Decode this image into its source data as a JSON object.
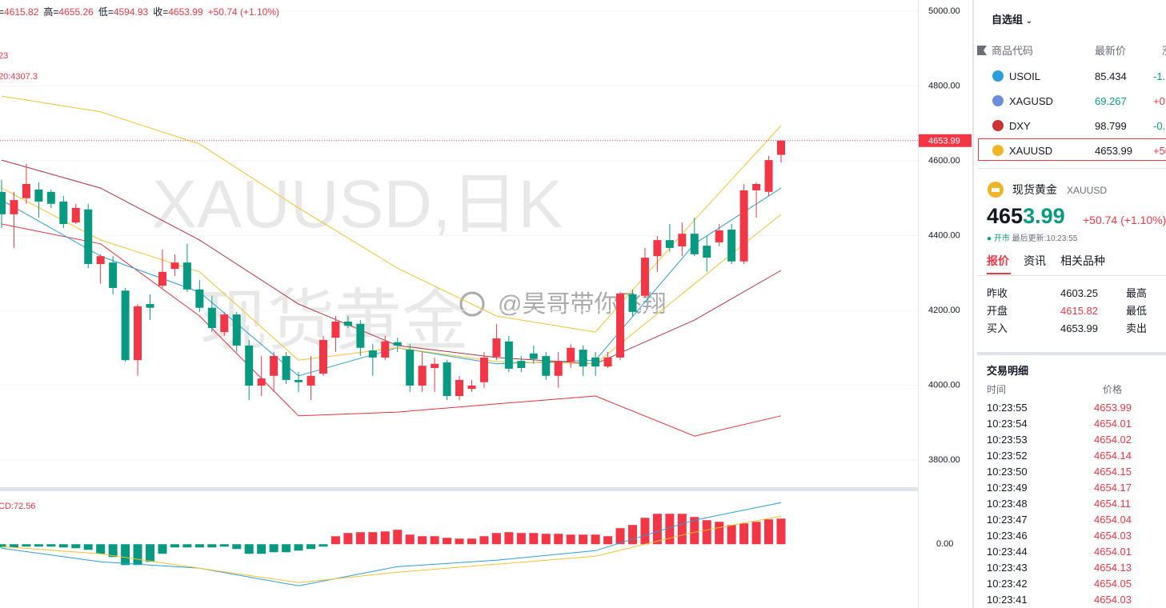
{
  "chart_data": {
    "type": "candlestick",
    "header": [
      {
        "label": "=",
        "value": "4615.82"
      },
      {
        "label": "高=",
        "value": "4655.26"
      },
      {
        "label": "低=",
        "value": "4594.93"
      },
      {
        "label": "收=",
        "value": "4653.99"
      }
    ],
    "header_change": "+50.74 (+1.10%)",
    "legend_lines": [
      "23",
      "20:4307.3"
    ],
    "watermark": "XAUUSD,日K",
    "watermark2": "现货黄金",
    "ylim": [
      3770,
      5030
    ],
    "yticks": [
      {
        "value": 5000,
        "label": "5000.00"
      },
      {
        "value": 4800,
        "label": "4800.00"
      },
      {
        "value": 4600,
        "label": "4600.00"
      },
      {
        "value": 4400,
        "label": "4400.00"
      },
      {
        "value": 4200,
        "label": "4200.00"
      },
      {
        "value": 4000,
        "label": "4000.00"
      },
      {
        "value": 3800,
        "label": "3800.00"
      }
    ],
    "grid": true,
    "last_price": {
      "value": 4653.99,
      "label": "4653.99"
    },
    "up_color": "#f23645",
    "down_color": "#089981",
    "candles": {
      "open": [
        4517,
        4457,
        4500,
        4523,
        4517,
        4491,
        4435,
        4470,
        4324,
        4328,
        4253,
        4067,
        4217,
        4266,
        4311,
        4328,
        4256,
        4207,
        4142,
        4189,
        4106,
        3999,
        4025,
        4078,
        4014,
        3999,
        4031,
        4127,
        4170,
        4164,
        4093,
        4074,
        4115,
        4095,
        3999,
        4046,
        4061,
        3971,
        3990,
        4008,
        4076,
        4117,
        4065,
        4085,
        4078,
        4025,
        4063,
        4095,
        4074,
        4050,
        4074,
        4243,
        4239,
        4345,
        4388,
        4371,
        4405,
        4373,
        4382,
        4416,
        4331,
        4521,
        4517,
        4615.82
      ],
      "high": [
        4549,
        4517,
        4592,
        4542,
        4523,
        4506,
        4485,
        4485,
        4350,
        4345,
        4260,
        4217,
        4243,
        4363,
        4350,
        4378,
        4281,
        4239,
        4196,
        4196,
        4121,
        4078,
        4089,
        4089,
        4035,
        4078,
        4132,
        4185,
        4185,
        4174,
        4110,
        4132,
        4127,
        4110,
        4089,
        4074,
        4067,
        4025,
        4014,
        4089,
        4164,
        4132,
        4078,
        4106,
        4089,
        4089,
        4110,
        4106,
        4089,
        4089,
        4249,
        4256,
        4367,
        4399,
        4431,
        4435,
        4448,
        4399,
        4431,
        4431,
        4538,
        4542,
        4613,
        4655.26
      ],
      "low": [
        4420,
        4367,
        4485,
        4448,
        4474,
        4420,
        4431,
        4313,
        4271,
        4243,
        4063,
        4025,
        4174,
        4260,
        4292,
        4249,
        4196,
        4142,
        4132,
        4089,
        3960,
        3971,
        3982,
        4003,
        3982,
        3960,
        4025,
        4089,
        4153,
        4078,
        4025,
        4067,
        4089,
        3982,
        3982,
        3982,
        3960,
        3960,
        3982,
        3993,
        4067,
        4035,
        4035,
        4057,
        4014,
        3993,
        4046,
        4025,
        4025,
        4046,
        4067,
        4185,
        4234,
        4303,
        4356,
        4345,
        4345,
        4303,
        4371,
        4324,
        4324,
        4448,
        4506,
        4594.93
      ],
      "close": [
        4457,
        4495,
        4538,
        4491,
        4485,
        4431,
        4474,
        4324,
        4345,
        4260,
        4067,
        4211,
        4207,
        4303,
        4328,
        4256,
        4207,
        4153,
        4189,
        4106,
        3999,
        4018,
        4078,
        4014,
        4008,
        4025,
        4121,
        4170,
        4159,
        4100,
        4074,
        4117,
        4106,
        3999,
        4052,
        4057,
        3971,
        4014,
        3999,
        4074,
        4125,
        4044,
        4046,
        4070,
        4025,
        4065,
        4100,
        4050,
        4050,
        4074,
        4245,
        4196,
        4341,
        4388,
        4367,
        4405,
        4350,
        4341,
        4414,
        4331,
        4521,
        4538,
        4602,
        4653.99
      ]
    },
    "line_x": [
      0,
      8,
      16,
      24,
      32,
      40,
      48,
      56,
      63
    ],
    "lines": [
      {
        "color": "#f2c230",
        "values": [
          4773,
          4731,
          4645,
          4474,
          4313,
          4185,
          4142,
          4442,
          4694
        ]
      },
      {
        "color": "#b2333f",
        "values": [
          4602,
          4527,
          4388,
          4217,
          4106,
          4074,
          4057,
          4174,
          4307
        ]
      },
      {
        "color": "#e8323c",
        "values": [
          4431,
          4378,
          4185,
          3918,
          3928,
          3950,
          3971,
          3864,
          3918
        ]
      },
      {
        "color": "#2a9fd8",
        "values": [
          4495,
          4345,
          4249,
          4025,
          4100,
          4057,
          4067,
          4378,
          4527
        ]
      },
      {
        "color": "#f2c230",
        "values": [
          4527,
          4388,
          4303,
          4067,
          4100,
          4063,
          4057,
          4271,
          4457
        ]
      }
    ],
    "macd": {
      "label": "CD:72.56",
      "ylim": [
        -140,
        148
      ],
      "yticks": [
        {
          "value": 0,
          "label": "0.00"
        }
      ],
      "histogram": [
        -9.1,
        -9.1,
        -6.8,
        -6.8,
        -6.8,
        -9.1,
        -11.4,
        -15.9,
        -27.2,
        -36.3,
        -59.0,
        -59.0,
        -49.9,
        -27.2,
        -9.1,
        -9.1,
        -9.1,
        -9.1,
        -6.8,
        -13.6,
        -27.2,
        -27.2,
        -22.7,
        -22.7,
        -18.2,
        -13.6,
        -6.8,
        22.7,
        31.8,
        34.1,
        34.1,
        36.3,
        40.9,
        27.2,
        22.7,
        22.7,
        18.2,
        15.9,
        15.9,
        22.7,
        31.8,
        34.1,
        31.8,
        31.8,
        29.5,
        29.5,
        27.2,
        27.2,
        27.2,
        22.7,
        45.4,
        54.5,
        74.9,
        86.3,
        86.3,
        86.3,
        77.2,
        68.1,
        63.6,
        54.5,
        59.0,
        63.6,
        70.4,
        72.56
      ],
      "lines": [
        {
          "color": "#2a9fd8",
          "values": [
            -11.4,
            -49.9,
            -68.1,
            -118.0,
            -63.6,
            -45.4,
            -18.2,
            68.1,
            118.0
          ]
        },
        {
          "color": "#f2c230",
          "values": [
            -6.8,
            -27.2,
            -68.1,
            -109.0,
            -79.5,
            -56.8,
            -34.1,
            34.1,
            79.5
          ]
        }
      ]
    }
  },
  "watermark_user": "@昊哥带你飞翔",
  "watchlist": {
    "title": "自选组",
    "headers": [
      "商品代码",
      "最新价",
      "涨"
    ],
    "rows": [
      [
        "USOIL",
        "85.434",
        "-1."
      ],
      [
        "XAGUSD",
        "69.267",
        "+0."
      ],
      [
        "DXY",
        "98.799",
        "-0."
      ],
      [
        "XAUUSD",
        "4653.99",
        "+50"
      ]
    ]
  },
  "quote": {
    "name": "现货黄金",
    "symbol": "XAUUSD",
    "price": "4653.99",
    "change": "+50.74 (+1.10%)",
    "status": "开市",
    "updated": "最后更新:10:23:55",
    "tabs": [
      "报价",
      "资讯",
      "相关品种"
    ],
    "stats": [
      [
        "昨收",
        "4603.25",
        "最高"
      ],
      [
        "开盘",
        "4615.82",
        "最低"
      ],
      [
        "买入",
        "4653.99",
        "卖出"
      ]
    ]
  },
  "trades": {
    "title": "交易明细",
    "headers": [
      "时间",
      "价格"
    ],
    "rows": [
      [
        "10:23:55",
        "4653.99"
      ],
      [
        "10:23:54",
        "4654.01"
      ],
      [
        "10:23:53",
        "4654.02"
      ],
      [
        "10:23:52",
        "4654.14"
      ],
      [
        "10:23:50",
        "4654.15"
      ],
      [
        "10:23:49",
        "4654.17"
      ],
      [
        "10:23:48",
        "4654.11"
      ],
      [
        "10:23:47",
        "4654.04"
      ],
      [
        "10:23:46",
        "4654.03"
      ],
      [
        "10:23:44",
        "4654.01"
      ],
      [
        "10:23:43",
        "4654.13"
      ],
      [
        "10:23:42",
        "4654.05"
      ],
      [
        "10:23:41",
        "4654.03"
      ]
    ]
  }
}
